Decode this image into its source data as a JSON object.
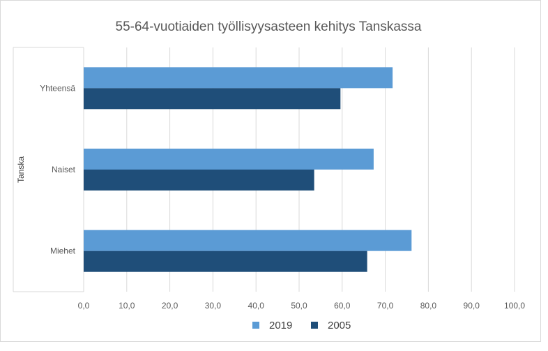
{
  "chart_data": {
    "type": "bar",
    "orientation": "horizontal",
    "title": "55-64-vuotiaiden työllisyysasteen kehitys Tanskassa",
    "group_label": "Tanska",
    "categories": [
      "Yhteensä",
      "Naiset",
      "Miehet"
    ],
    "series": [
      {
        "name": "2019",
        "color": "#5b9bd5",
        "values": [
          71.7,
          67.3,
          76.1
        ]
      },
      {
        "name": "2005",
        "color": "#1f4e79",
        "values": [
          59.6,
          53.5,
          65.8
        ]
      }
    ],
    "xlim": [
      0,
      100
    ],
    "xticks": [
      "0,0",
      "10,0",
      "20,0",
      "30,0",
      "40,0",
      "50,0",
      "60,0",
      "70,0",
      "80,0",
      "90,0",
      "100,0"
    ],
    "grid": true,
    "legend_position": "bottom"
  }
}
